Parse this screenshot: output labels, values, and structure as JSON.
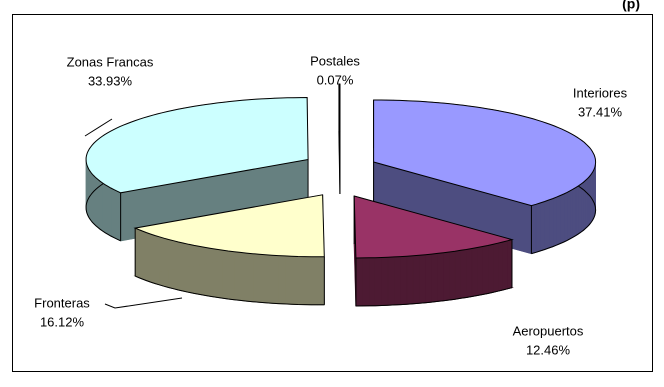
{
  "chart_data": {
    "type": "pie",
    "title": "(p)",
    "categories": [
      "Interiores",
      "Aeropuertos",
      "Fronteras",
      "Zonas Francas",
      "Postales"
    ],
    "values": [
      37.41,
      12.46,
      16.12,
      33.93,
      0.07
    ],
    "value_labels": [
      "37.41%",
      "12.46%",
      "16.12%",
      "33.93%",
      "0.07%"
    ],
    "colors": [
      "#9999ff",
      "#993366",
      "#ffffcc",
      "#ccffff",
      "#000000"
    ],
    "side_colors": [
      "#4d4d80",
      "#4d1a33",
      "#808066",
      "#668080",
      "#000000"
    ]
  }
}
